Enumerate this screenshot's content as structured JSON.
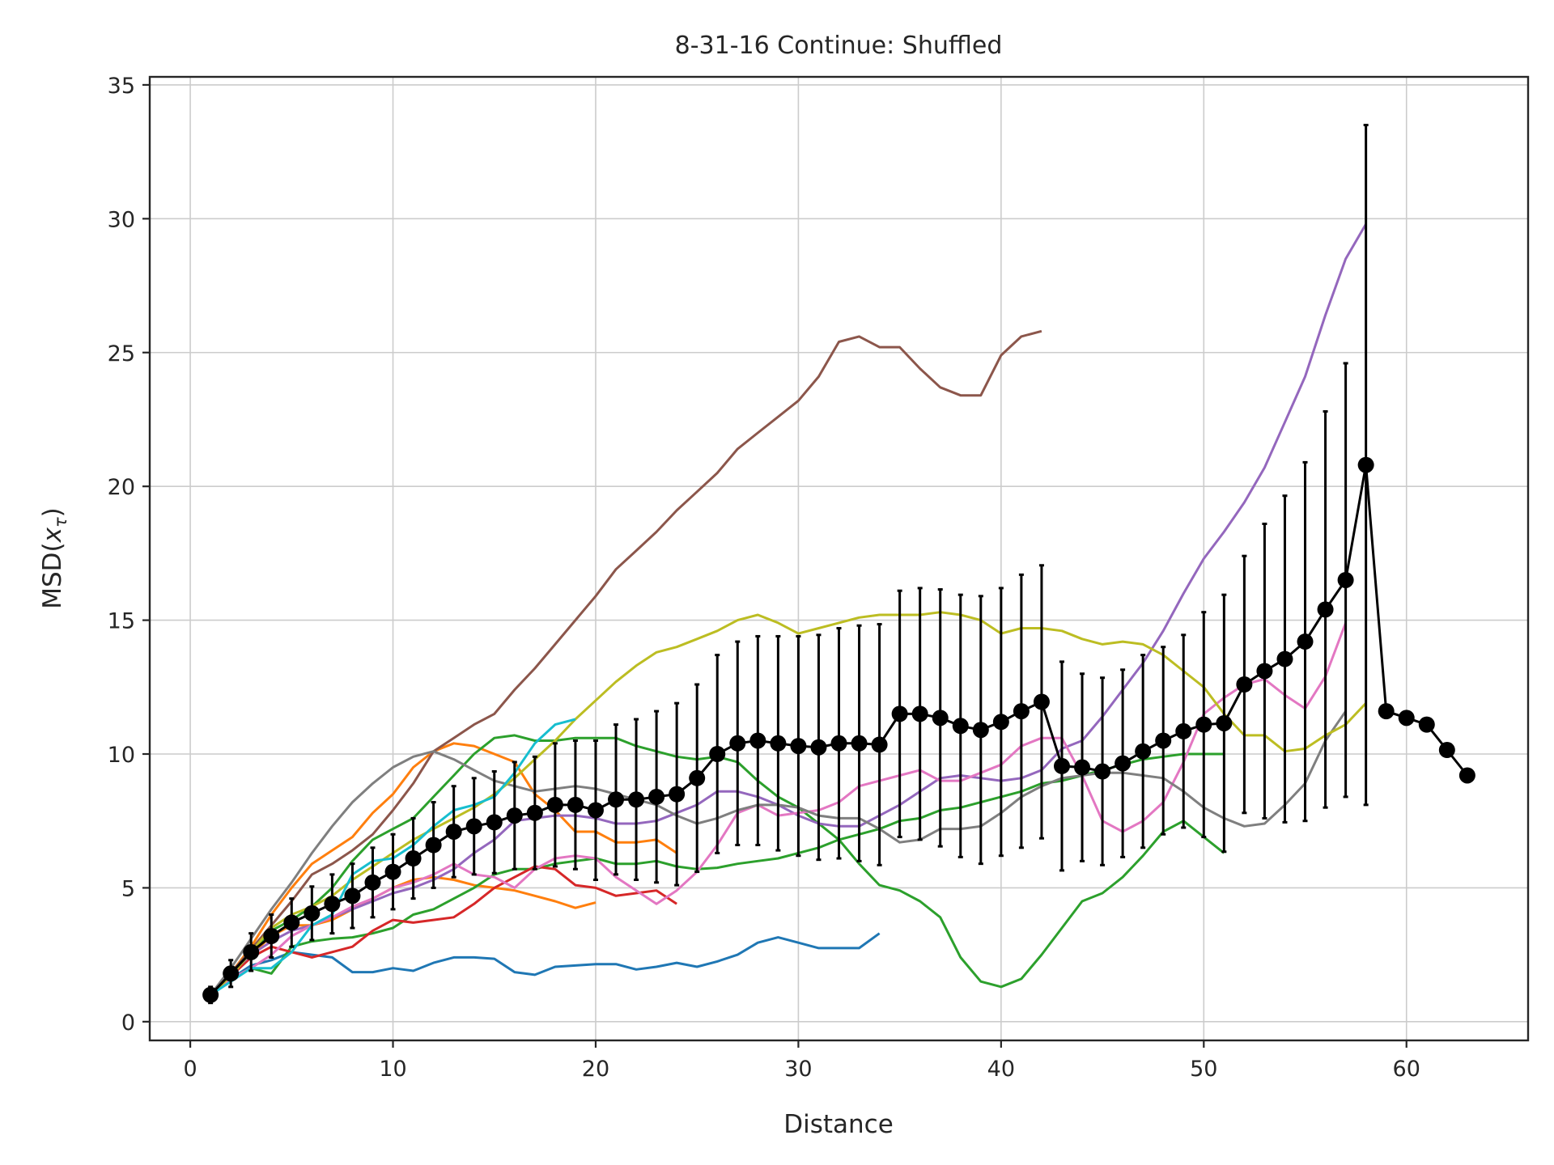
{
  "chart_data": {
    "type": "line",
    "title": "8-31-16 Continue: Shuffled",
    "xlabel": "Distance",
    "ylabel": "MSD(x_τ)",
    "ylabel_parts": {
      "base": "MSD(",
      "var": "x",
      "sub": "τ",
      "close": ")"
    },
    "xlim": [
      -2,
      66
    ],
    "ylim": [
      -0.7,
      35.3
    ],
    "xticks": [
      0,
      10,
      20,
      30,
      40,
      50,
      60
    ],
    "yticks": [
      0,
      5,
      10,
      15,
      20,
      25,
      30,
      35
    ],
    "grid": true,
    "series": [
      {
        "color": "#1f77b4",
        "x": [
          1,
          2,
          3,
          4,
          5,
          6,
          7,
          8,
          9,
          10,
          11,
          12,
          13,
          14,
          15,
          16,
          17,
          18,
          19,
          20,
          21,
          22,
          23,
          24,
          25,
          26,
          27,
          28,
          29,
          30,
          31,
          32,
          33,
          34
        ],
        "y": [
          1.0,
          1.6,
          2.1,
          2.3,
          2.6,
          2.5,
          2.4,
          1.85,
          1.85,
          2.0,
          1.9,
          2.2,
          2.4,
          2.4,
          2.35,
          1.85,
          1.75,
          2.05,
          2.1,
          2.15,
          2.15,
          1.95,
          2.05,
          2.2,
          2.05,
          2.25,
          2.5,
          2.95,
          3.15,
          2.95,
          2.75,
          2.75,
          2.75,
          3.3
        ]
      },
      {
        "color": "#ff7f0e",
        "x": [
          1,
          2,
          3,
          4,
          5,
          6,
          7,
          8,
          9,
          10,
          11,
          12,
          13,
          14,
          15,
          16,
          17,
          18,
          19,
          20
        ],
        "y": [
          1.0,
          1.7,
          2.5,
          3.2,
          3.6,
          3.6,
          3.8,
          4.2,
          4.6,
          5.0,
          5.3,
          5.4,
          5.3,
          5.1,
          5.0,
          4.9,
          4.7,
          4.5,
          4.25,
          4.45
        ]
      },
      {
        "color": "#ff7f0e",
        "x": [
          1,
          2,
          3,
          4,
          5,
          6,
          7,
          8,
          9,
          10,
          11,
          12,
          13,
          14,
          15,
          16,
          17,
          18,
          19,
          20,
          21,
          22,
          23,
          24
        ],
        "y": [
          1.0,
          1.8,
          2.8,
          4.0,
          5.0,
          5.9,
          6.4,
          6.9,
          7.8,
          8.5,
          9.5,
          10.1,
          10.4,
          10.3,
          10.0,
          9.7,
          8.5,
          7.9,
          7.1,
          7.1,
          6.7,
          6.7,
          6.8,
          6.3
        ]
      },
      {
        "color": "#2ca02c",
        "x": [
          1,
          2,
          3,
          4,
          5,
          6,
          7,
          8,
          9,
          10,
          11,
          12,
          13,
          14,
          15,
          16,
          17,
          18,
          19,
          20,
          21,
          22,
          23,
          24,
          25,
          26,
          27,
          28,
          29,
          30,
          31,
          32,
          33,
          34,
          35,
          36,
          37,
          38,
          39,
          40,
          41,
          42,
          43,
          44,
          45,
          46,
          47,
          48,
          49,
          50,
          51
        ],
        "y": [
          1.0,
          1.6,
          2.0,
          1.8,
          2.8,
          3.0,
          3.1,
          3.15,
          3.3,
          3.5,
          4.0,
          4.2,
          4.6,
          5.0,
          5.5,
          5.7,
          5.7,
          5.9,
          6.0,
          6.1,
          5.9,
          5.9,
          6.0,
          5.8,
          5.7,
          5.75,
          5.9,
          6.0,
          6.1,
          6.3,
          6.5,
          6.8,
          7.0,
          7.2,
          7.5,
          7.6,
          7.9,
          8.0,
          8.2,
          8.4,
          8.6,
          8.9,
          9.0,
          9.2,
          9.4,
          9.6,
          9.8,
          9.9,
          10.0,
          10.0,
          10.0
        ]
      },
      {
        "color": "#2ca02c",
        "x": [
          1,
          2,
          3,
          4,
          5,
          6,
          7,
          8,
          9,
          10,
          11,
          12,
          13,
          14,
          15,
          16,
          17,
          18,
          19,
          20,
          21,
          22,
          23,
          24,
          25,
          26,
          27,
          28,
          29,
          30,
          31,
          32,
          33,
          34,
          35,
          36,
          37,
          38,
          39,
          40,
          41,
          42,
          43,
          44,
          45,
          46,
          47,
          48,
          49,
          50,
          51
        ],
        "y": [
          1.0,
          1.7,
          2.5,
          3.4,
          3.8,
          4.3,
          5.0,
          6.0,
          6.8,
          7.2,
          7.6,
          8.4,
          9.2,
          10.0,
          10.6,
          10.7,
          10.5,
          10.5,
          10.6,
          10.6,
          10.6,
          10.3,
          10.1,
          9.9,
          9.8,
          9.9,
          9.7,
          9.0,
          8.4,
          8.0,
          7.4,
          6.8,
          5.9,
          5.1,
          4.9,
          4.5,
          3.9,
          2.4,
          1.5,
          1.3,
          1.6,
          2.5,
          3.5,
          4.5,
          4.8,
          5.4,
          6.2,
          7.1,
          7.5,
          6.9,
          6.3
        ]
      },
      {
        "color": "#d62728",
        "x": [
          1,
          2,
          3,
          4,
          5,
          6,
          7,
          8,
          9,
          10,
          11,
          12,
          13,
          14,
          15,
          16,
          17,
          18,
          19,
          20,
          21,
          22,
          23,
          24
        ],
        "y": [
          1.0,
          1.7,
          2.4,
          2.8,
          2.6,
          2.4,
          2.6,
          2.8,
          3.4,
          3.8,
          3.7,
          3.8,
          3.9,
          4.4,
          5.0,
          5.4,
          5.8,
          5.7,
          5.1,
          5.0,
          4.7,
          4.8,
          4.9,
          4.4
        ]
      },
      {
        "color": "#9467bd",
        "x": [
          1,
          2,
          3,
          4,
          5,
          6,
          7,
          8,
          9,
          10,
          11,
          12,
          13,
          14,
          15,
          16,
          17,
          18,
          19,
          20,
          21,
          22,
          23,
          24,
          25,
          26,
          27,
          28,
          29,
          30,
          31,
          32,
          33,
          34,
          35,
          36,
          37,
          38,
          39,
          40,
          41,
          42,
          43,
          44,
          45,
          46,
          47,
          48,
          49,
          50,
          51,
          52,
          53,
          54,
          55,
          56,
          57,
          58
        ],
        "y": [
          1.0,
          1.8,
          2.5,
          3.0,
          3.4,
          3.6,
          3.9,
          4.2,
          4.5,
          4.8,
          5.0,
          5.3,
          5.7,
          6.3,
          6.8,
          7.5,
          7.6,
          7.7,
          7.7,
          7.6,
          7.4,
          7.4,
          7.5,
          7.8,
          8.1,
          8.6,
          8.6,
          8.4,
          8.1,
          7.7,
          7.4,
          7.3,
          7.3,
          7.7,
          8.1,
          8.6,
          9.1,
          9.2,
          9.1,
          9.0,
          9.1,
          9.4,
          10.2,
          10.5,
          11.4,
          12.4,
          13.4,
          14.6,
          16.0,
          17.3,
          18.3,
          19.4,
          20.7,
          22.4,
          24.1,
          26.4,
          28.5,
          29.8
        ]
      },
      {
        "color": "#8c564b",
        "x": [
          1,
          2,
          3,
          4,
          5,
          6,
          7,
          8,
          9,
          10,
          11,
          12,
          13,
          14,
          15,
          16,
          17,
          18,
          19,
          20,
          21,
          22,
          23,
          24,
          25,
          26,
          27,
          28,
          29,
          30,
          31,
          32,
          33,
          34,
          35,
          36,
          37,
          38,
          39,
          40,
          41,
          42
        ],
        "y": [
          1.0,
          1.8,
          2.7,
          3.6,
          4.5,
          5.5,
          5.9,
          6.4,
          7.0,
          7.9,
          8.9,
          10.1,
          10.6,
          11.1,
          11.5,
          12.4,
          13.2,
          14.1,
          15.0,
          15.9,
          16.9,
          17.6,
          18.3,
          19.1,
          19.8,
          20.5,
          21.4,
          22.0,
          22.6,
          23.2,
          24.1,
          25.4,
          25.6,
          25.2,
          25.2,
          24.4,
          23.7,
          23.4,
          23.4,
          24.9,
          25.6,
          25.8
        ]
      },
      {
        "color": "#e377c2",
        "x": [
          1,
          2,
          3,
          4,
          5,
          6,
          7,
          8,
          9,
          10,
          11,
          12,
          13,
          14,
          15,
          16,
          17,
          18,
          19,
          20,
          21,
          22,
          23,
          24,
          25,
          26,
          27,
          28,
          29,
          30,
          31,
          32,
          33,
          34,
          35,
          36,
          37,
          38,
          39,
          40,
          41,
          42,
          43,
          44,
          45,
          46,
          47,
          48,
          49,
          50,
          51,
          52,
          53,
          54,
          55,
          56,
          57
        ],
        "y": [
          1.0,
          1.6,
          2.0,
          2.5,
          3.2,
          3.6,
          3.9,
          4.3,
          4.6,
          5.0,
          5.2,
          5.5,
          5.9,
          5.5,
          5.4,
          5.0,
          5.7,
          6.1,
          6.2,
          6.1,
          5.4,
          4.9,
          4.4,
          4.9,
          5.6,
          6.6,
          7.8,
          8.1,
          7.7,
          7.8,
          7.9,
          8.2,
          8.8,
          9.0,
          9.2,
          9.4,
          9.0,
          9.0,
          9.3,
          9.6,
          10.3,
          10.6,
          10.6,
          9.2,
          7.5,
          7.1,
          7.5,
          8.2,
          9.7,
          11.5,
          12.1,
          12.6,
          12.8,
          12.2,
          11.7,
          12.9,
          14.9
        ]
      },
      {
        "color": "#7f7f7f",
        "x": [
          1,
          2,
          3,
          4,
          5,
          6,
          7,
          8,
          9,
          10,
          11,
          12,
          13,
          14,
          15,
          16,
          17,
          18,
          19,
          20,
          21,
          22,
          23,
          24,
          25,
          26,
          27,
          28,
          29,
          30,
          31,
          32,
          33,
          34,
          35,
          36,
          37,
          38,
          39,
          40,
          41,
          42,
          43,
          44,
          45,
          46,
          47,
          48,
          49,
          50,
          51,
          52,
          53,
          54,
          55,
          56,
          57
        ],
        "y": [
          1.0,
          2.0,
          3.1,
          4.2,
          5.2,
          6.3,
          7.3,
          8.2,
          8.9,
          9.5,
          9.9,
          10.1,
          9.8,
          9.4,
          9.0,
          8.8,
          8.6,
          8.7,
          8.8,
          8.7,
          8.5,
          8.3,
          8.1,
          7.7,
          7.4,
          7.6,
          7.9,
          8.1,
          8.1,
          8.0,
          7.7,
          7.6,
          7.6,
          7.2,
          6.7,
          6.8,
          7.2,
          7.2,
          7.3,
          7.8,
          8.4,
          8.8,
          9.1,
          9.2,
          9.3,
          9.3,
          9.2,
          9.1,
          8.6,
          8.0,
          7.6,
          7.3,
          7.4,
          8.1,
          8.9,
          10.5,
          11.6
        ]
      },
      {
        "color": "#bcbd22",
        "x": [
          1,
          2,
          3,
          4,
          5,
          6,
          7,
          8,
          9,
          10,
          11,
          12,
          13,
          14,
          15,
          16,
          17,
          18,
          19,
          20,
          21,
          22,
          23,
          24,
          25,
          26,
          27,
          28,
          29,
          30,
          31,
          32,
          33,
          34,
          35,
          36,
          37,
          38,
          39,
          40,
          41,
          42,
          43,
          44,
          45,
          46,
          47,
          48,
          49,
          50,
          51,
          52,
          53,
          54,
          55,
          56,
          57,
          58
        ],
        "y": [
          1.0,
          1.7,
          2.6,
          3.5,
          4.0,
          4.3,
          4.7,
          5.3,
          5.8,
          6.3,
          6.8,
          7.2,
          7.6,
          8.0,
          8.5,
          9.1,
          9.8,
          10.5,
          11.3,
          12.0,
          12.7,
          13.3,
          13.8,
          14.0,
          14.3,
          14.6,
          15.0,
          15.2,
          14.9,
          14.5,
          14.7,
          14.9,
          15.1,
          15.2,
          15.2,
          15.2,
          15.3,
          15.2,
          15.0,
          14.5,
          14.7,
          14.7,
          14.6,
          14.3,
          14.1,
          14.2,
          14.1,
          13.7,
          13.1,
          12.5,
          11.5,
          10.7,
          10.7,
          10.1,
          10.2,
          10.7,
          11.1,
          11.9
        ]
      },
      {
        "color": "#17becf",
        "x": [
          1,
          2,
          3,
          4,
          5,
          6,
          7,
          8,
          9,
          10,
          11,
          12,
          13,
          14,
          15,
          16,
          17,
          18,
          19
        ],
        "y": [
          1.0,
          1.5,
          2.0,
          2.0,
          2.6,
          3.6,
          4.0,
          5.5,
          6.0,
          6.1,
          6.6,
          7.3,
          7.9,
          8.1,
          8.4,
          9.3,
          10.4,
          11.1,
          11.3
        ]
      }
    ],
    "mean": {
      "color": "#000000",
      "x": [
        1,
        2,
        3,
        4,
        5,
        6,
        7,
        8,
        9,
        10,
        11,
        12,
        13,
        14,
        15,
        16,
        17,
        18,
        19,
        20,
        21,
        22,
        23,
        24,
        25,
        26,
        27,
        28,
        29,
        30,
        31,
        32,
        33,
        34,
        35,
        36,
        37,
        38,
        39,
        40,
        41,
        42,
        43,
        44,
        45,
        46,
        47,
        48,
        49,
        50,
        51,
        52,
        53,
        54,
        55,
        56,
        57,
        58,
        59,
        60,
        61,
        62,
        63
      ],
      "y": [
        1.0,
        1.8,
        2.6,
        3.2,
        3.7,
        4.05,
        4.4,
        4.7,
        5.2,
        5.6,
        6.1,
        6.6,
        7.1,
        7.3,
        7.45,
        7.7,
        7.8,
        8.1,
        8.1,
        7.9,
        8.3,
        8.3,
        8.4,
        8.5,
        9.1,
        10.0,
        10.4,
        10.5,
        10.4,
        10.3,
        10.25,
        10.4,
        10.4,
        10.35,
        11.5,
        11.5,
        11.35,
        11.05,
        10.9,
        11.2,
        11.6,
        11.95,
        9.55,
        9.5,
        9.35,
        9.65,
        10.1,
        10.5,
        10.85,
        11.1,
        11.15,
        12.6,
        13.1,
        13.55,
        14.2,
        15.4,
        16.5,
        20.8,
        11.6,
        11.35,
        11.1,
        10.15,
        9.2
      ],
      "err": [
        0.3,
        0.5,
        0.7,
        0.8,
        0.9,
        1.0,
        1.1,
        1.2,
        1.3,
        1.4,
        1.5,
        1.6,
        1.7,
        1.8,
        1.9,
        2.0,
        2.1,
        2.3,
        2.4,
        2.6,
        2.8,
        3.0,
        3.2,
        3.4,
        3.5,
        3.7,
        3.8,
        3.9,
        4.0,
        4.1,
        4.2,
        4.3,
        4.4,
        4.5,
        4.6,
        4.7,
        4.8,
        4.9,
        5.0,
        5.0,
        5.1,
        5.1,
        3.9,
        3.5,
        3.5,
        3.5,
        3.6,
        3.5,
        3.6,
        4.2,
        4.8,
        4.8,
        5.5,
        6.1,
        6.7,
        7.4,
        8.1,
        12.7,
        0,
        0,
        0,
        0,
        0
      ]
    }
  }
}
